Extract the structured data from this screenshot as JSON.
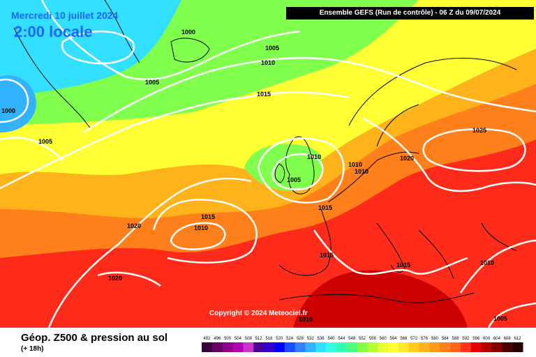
{
  "header": {
    "date": "Mercredi 10 juillet 2024",
    "time": "2:00 locale",
    "run": "Ensemble GEFS  (Run de contrôle)  -  06 Z du 09/07/2024"
  },
  "footer": {
    "title": "Géop. Z500 & pression au sol",
    "subtitle": "(+ 18h)",
    "copyright": "Copyright © 2024 Meteociel.fr"
  },
  "map_data": {
    "colors": {
      "cold": "#33e0ff",
      "cool": "#66f28c",
      "mid": "#ffff33",
      "warm": "#ffb31a",
      "hot": "#ff2b1a",
      "very_hot": "#cc0000",
      "isobar": "#ffffff"
    },
    "isobar_labels": [
      "1000",
      "1005",
      "1010",
      "1015",
      "1020",
      "1025"
    ]
  },
  "scale": {
    "ticks": [
      "492",
      "496",
      "500",
      "504",
      "508",
      "512",
      "516",
      "520",
      "524",
      "528",
      "532",
      "536",
      "540",
      "544",
      "548",
      "552",
      "556",
      "560",
      "564",
      "568",
      "572",
      "576",
      "580",
      "584",
      "588",
      "592",
      "596",
      "600",
      "604",
      "608",
      "612"
    ],
    "colors": [
      "#3d003d",
      "#660066",
      "#8c008c",
      "#b300b3",
      "#cc33cc",
      "#4d0099",
      "#3300cc",
      "#0000ff",
      "#1a4dff",
      "#3380ff",
      "#33b3ff",
      "#33e0ff",
      "#33ffe6",
      "#33ffb3",
      "#4dff80",
      "#80ff4d",
      "#b3ff33",
      "#e6ff33",
      "#ffff33",
      "#ffe633",
      "#ffcc1a",
      "#ffb31a",
      "#ff991a",
      "#ff801a",
      "#ff661a",
      "#ff331a",
      "#e60000",
      "#b30000",
      "#800000",
      "#4d0000",
      "#260000"
    ]
  }
}
